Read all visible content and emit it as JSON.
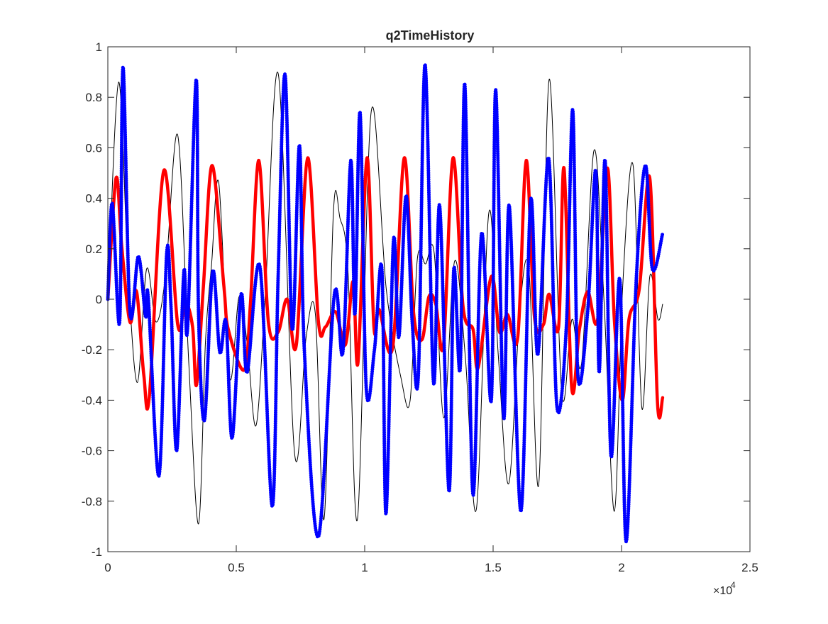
{
  "chart_data": {
    "type": "line",
    "title": "q2TimeHistory",
    "xlabel": "",
    "ylabel": "",
    "xlim": [
      0,
      25000
    ],
    "ylim": [
      -1,
      1
    ],
    "grid": false,
    "legend": "none",
    "x_ticks": [
      0,
      0.5,
      1,
      1.5,
      2,
      2.5
    ],
    "x_tick_labels": [
      "0",
      "0.5",
      "1",
      "1.5",
      "2",
      "2.5"
    ],
    "x_multiplier_base": "×10",
    "x_multiplier_exponent": "4",
    "y_ticks": [
      -1,
      -0.8,
      -0.6,
      -0.4,
      -0.2,
      0,
      0.2,
      0.4,
      0.6,
      0.8,
      1
    ],
    "y_tick_labels": [
      "-1",
      "-0.8",
      "-0.6",
      "-0.4",
      "-0.2",
      "0",
      "0.2",
      "0.4",
      "0.6",
      "0.8",
      "1"
    ],
    "series": [
      {
        "color": "#000000",
        "style": "thin-line",
        "x": [
          0,
          420,
          790,
          1150,
          1510,
          1880,
          2250,
          2720,
          3150,
          3530,
          3800,
          4040,
          4320,
          4740,
          5110,
          5430,
          5770,
          6130,
          6640,
          7270,
          7720,
          8080,
          8420,
          8780,
          9040,
          9350,
          9720,
          10250,
          10840,
          11410,
          11770,
          12050,
          12370,
          12710,
          13080,
          13500,
          13920,
          14350,
          14830,
          15200,
          15610,
          16050,
          16400,
          16780,
          17180,
          17670,
          18070,
          18450,
          18930,
          19320,
          19720,
          20040,
          20450,
          20790,
          21100,
          21420,
          21600
        ],
        "y": [
          0,
          0.86,
          0.1,
          -0.33,
          0.12,
          -0.09,
          0.1,
          0.65,
          -0.25,
          -0.89,
          -0.17,
          0.14,
          0.46,
          -0.31,
          0.01,
          -0.18,
          -0.5,
          0.02,
          0.89,
          -0.61,
          -0.15,
          -0.06,
          -0.87,
          0.34,
          0.32,
          0.11,
          -0.87,
          0.74,
          0.04,
          -0.31,
          -0.4,
          0.16,
          0.14,
          0.18,
          -0.47,
          0.15,
          -0.23,
          -0.83,
          0.34,
          -0.22,
          -0.73,
          -0.03,
          0.11,
          -0.73,
          0.87,
          -0.37,
          -0.08,
          -0.25,
          0.59,
          -0.01,
          -0.84,
          0.04,
          0.53,
          -0.43,
          0.09,
          -0.08,
          -0.02
        ]
      },
      {
        "color": "#ff0000",
        "style": "thick-line",
        "x": [
          0,
          320,
          540,
          860,
          1120,
          1400,
          1620,
          2180,
          2720,
          3010,
          3300,
          3450,
          3720,
          4060,
          4520,
          4690,
          5310,
          5550,
          5880,
          6250,
          6630,
          6980,
          7340,
          7780,
          8200,
          8470,
          8870,
          9250,
          9550,
          9740,
          10090,
          10360,
          10560,
          11090,
          11540,
          11900,
          12230,
          12500,
          12770,
          13070,
          13440,
          13830,
          14220,
          14420,
          14930,
          15250,
          15560,
          15960,
          16290,
          16610,
          16960,
          17180,
          17550,
          17760,
          18060,
          18360,
          18680,
          19070,
          19450,
          19720,
          20030,
          20290,
          20690,
          21100,
          21400,
          21600
        ],
        "y": [
          0,
          0.48,
          0.21,
          -0.09,
          0.03,
          -0.3,
          -0.38,
          0.51,
          -0.1,
          -0.01,
          -0.11,
          -0.34,
          0.05,
          0.53,
          0.05,
          -0.12,
          -0.28,
          -0.02,
          0.55,
          -0.09,
          -0.13,
          0.0,
          -0.18,
          0.56,
          -0.09,
          -0.11,
          -0.05,
          -0.18,
          0.07,
          -0.25,
          0.56,
          -0.11,
          -0.04,
          -0.19,
          0.56,
          -0.05,
          -0.16,
          0.01,
          -0.02,
          -0.18,
          0.56,
          -0.03,
          -0.12,
          -0.27,
          0.09,
          -0.13,
          -0.06,
          -0.15,
          0.55,
          -0.07,
          -0.1,
          0.02,
          -0.11,
          0.52,
          -0.35,
          -0.12,
          0.03,
          -0.08,
          0.52,
          -0.08,
          -0.4,
          -0.08,
          0.04,
          0.48,
          -0.41,
          -0.39
        ]
      },
      {
        "color": "#0000ff",
        "style": "dotted-thick",
        "x": [
          0,
          170,
          460,
          590,
          860,
          1190,
          1470,
          1570,
          1990,
          2290,
          2460,
          2680,
          2960,
          3100,
          3440,
          3530,
          3760,
          4080,
          4360,
          4600,
          4840,
          5190,
          5420,
          5920,
          6400,
          6630,
          6900,
          7180,
          7460,
          7650,
          8200,
          8820,
          9150,
          9460,
          9620,
          9820,
          10060,
          10380,
          10670,
          10830,
          11120,
          11330,
          11610,
          11850,
          12090,
          12350,
          12680,
          12920,
          13280,
          13470,
          13720,
          13900,
          14210,
          14550,
          14930,
          15100,
          15410,
          15630,
          16080,
          16460,
          16740,
          17160,
          17480,
          17850,
          18100,
          18300,
          18680,
          19000,
          19130,
          19360,
          19590,
          19930,
          20180,
          20570,
          20930,
          21200,
          21600
        ],
        "y": [
          0,
          0.38,
          -0.09,
          0.92,
          -0.05,
          0.17,
          -0.07,
          0.01,
          -0.7,
          0.18,
          -0.03,
          -0.6,
          0.11,
          -0.12,
          0.87,
          -0.05,
          -0.48,
          0.11,
          -0.21,
          -0.09,
          -0.55,
          0.02,
          -0.29,
          0.13,
          -0.82,
          0.09,
          0.89,
          -0.12,
          0.61,
          -0.2,
          -0.94,
          0.02,
          -0.21,
          0.55,
          -0.06,
          0.74,
          -0.35,
          -0.2,
          0.12,
          -0.85,
          0.23,
          -0.15,
          0.41,
          -0.09,
          -0.3,
          0.93,
          -0.33,
          0.37,
          -0.76,
          0.12,
          -0.27,
          0.85,
          -0.77,
          0.26,
          -0.4,
          0.83,
          -0.47,
          0.37,
          -0.84,
          0.39,
          -0.22,
          0.56,
          -0.42,
          -0.11,
          0.75,
          -0.3,
          -0.05,
          0.51,
          -0.29,
          0.55,
          -0.62,
          0.08,
          -0.96,
          0.07,
          0.53,
          0.12,
          0.26
        ]
      }
    ]
  }
}
